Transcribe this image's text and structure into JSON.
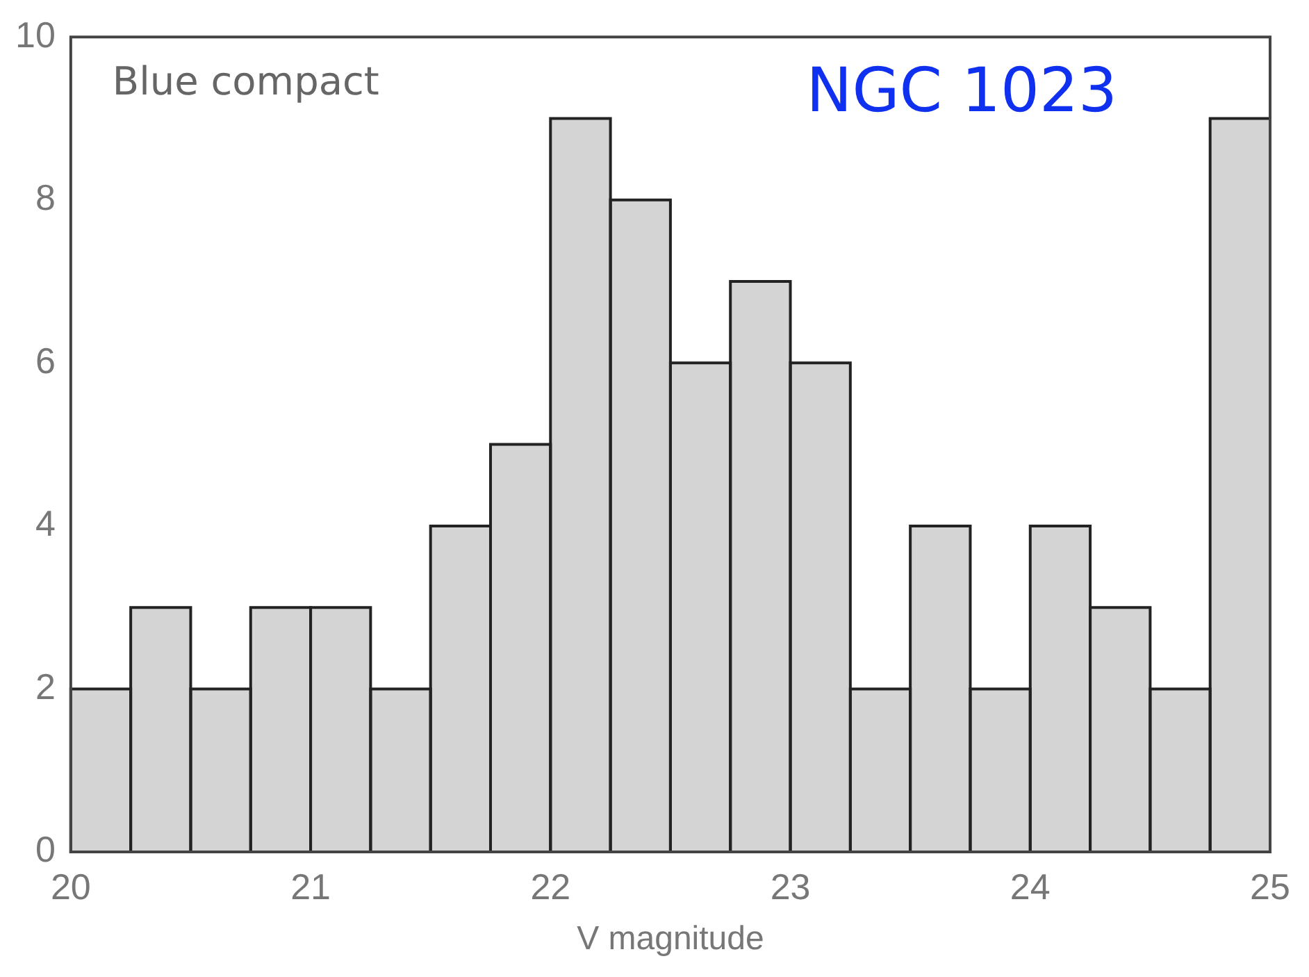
{
  "chart_data": {
    "type": "histogram",
    "xlabel": "V magnitude",
    "annotations": [
      "Blue compact",
      "NGC 1023"
    ],
    "bins": [
      20,
      20.25,
      20.5,
      20.75,
      21,
      21.25,
      21.5,
      21.75,
      22,
      22.25,
      22.5,
      22.75,
      23,
      23.25,
      23.5,
      23.75,
      24,
      24.25,
      24.5,
      24.75,
      25
    ],
    "values": [
      2,
      3,
      2,
      3,
      3,
      2,
      4,
      5,
      9,
      8,
      6,
      7,
      6,
      2,
      4,
      2,
      4,
      3,
      2,
      9
    ],
    "color": "#d4d4d4",
    "xlim": [
      20,
      25
    ],
    "xticks": [
      20,
      21,
      22,
      23,
      24,
      25
    ],
    "ylim": [
      0,
      10
    ],
    "yticks": [
      0,
      2,
      4,
      6,
      8,
      10
    ],
    "grid": false,
    "legend": false
  }
}
